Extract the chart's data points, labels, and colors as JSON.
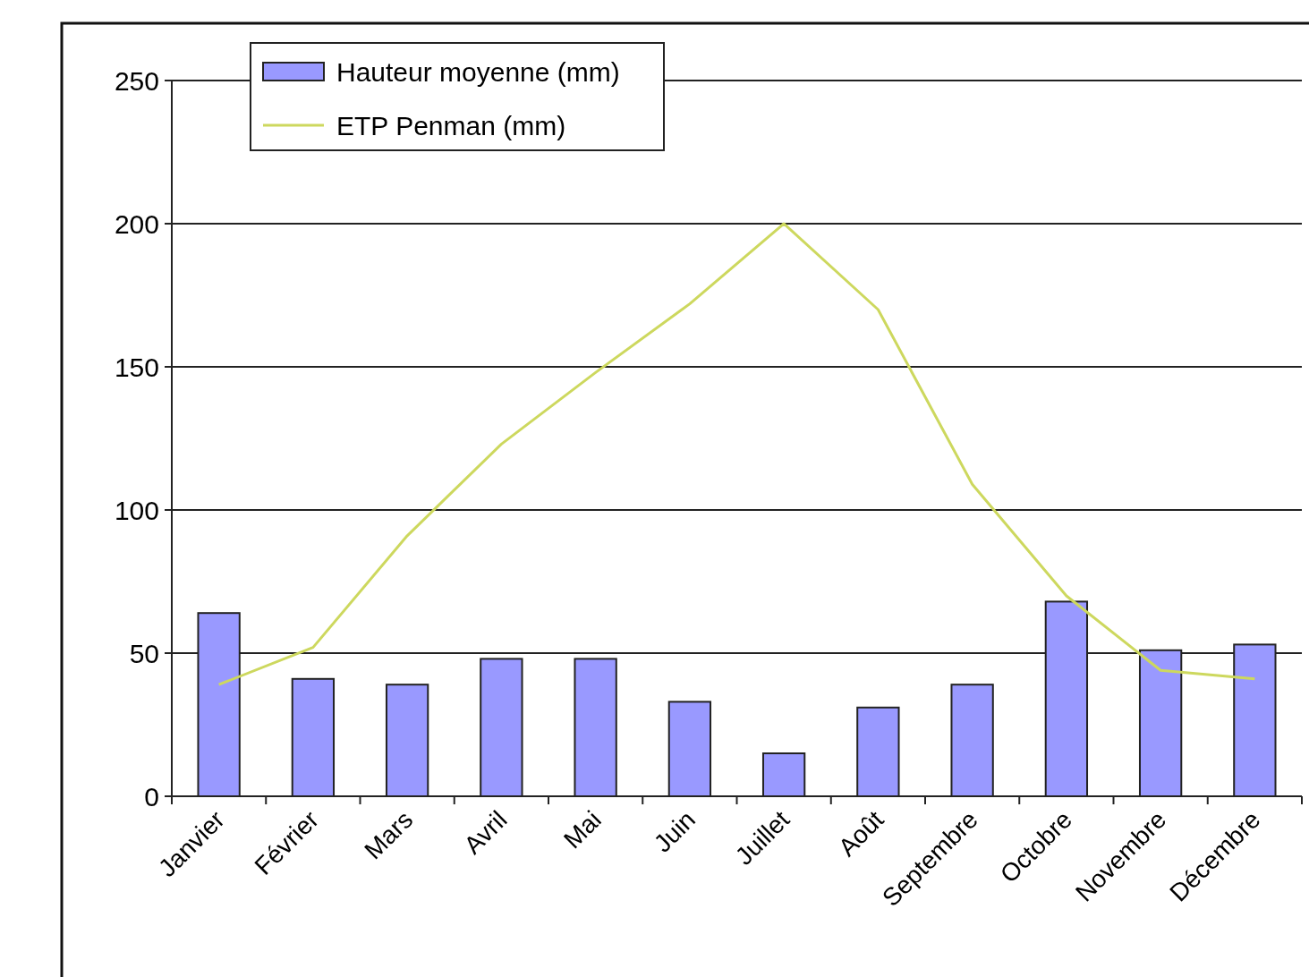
{
  "chart_data": {
    "type": "bar",
    "categories": [
      "Janvier",
      "Février",
      "Mars",
      "Avril",
      "Mai",
      "Juin",
      "Juillet",
      "Août",
      "Septembre",
      "Octobre",
      "Novembre",
      "Décembre"
    ],
    "series": [
      {
        "name": "Hauteur moyenne (mm)",
        "color": "#9999ff",
        "values": [
          64,
          41,
          39,
          48,
          48,
          33,
          15,
          31,
          39,
          68,
          51,
          53
        ]
      },
      {
        "name": "ETP Penman (mm)",
        "type": "line",
        "color": "#cdd85e",
        "values": [
          39,
          52,
          91,
          123,
          148,
          172,
          200,
          170,
          109,
          70,
          44,
          41
        ]
      }
    ],
    "ylim": [
      0,
      250
    ],
    "yticks": [
      0,
      50,
      100,
      150,
      200,
      250
    ],
    "grid": "y",
    "legend": "top left"
  }
}
